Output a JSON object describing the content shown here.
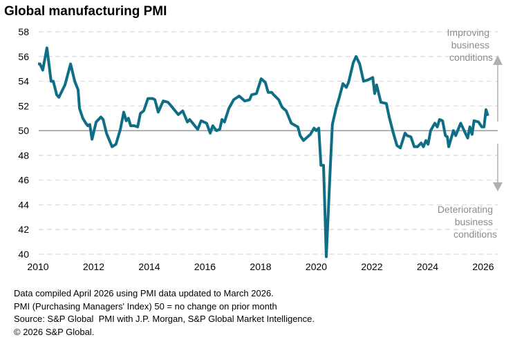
{
  "chart_data": {
    "type": "line",
    "title": "Global manufacturing PMI",
    "xlabel": "",
    "ylabel": "",
    "xlim": [
      2010,
      2026
    ],
    "ylim": [
      40,
      58
    ],
    "x_ticks": [
      "2010",
      "2012",
      "2014",
      "2016",
      "2018",
      "2020",
      "2022",
      "2024",
      "2026"
    ],
    "y_ticks": [
      "40",
      "42",
      "44",
      "46",
      "48",
      "50",
      "52",
      "54",
      "56",
      "58"
    ],
    "grid": "horizontal dashed",
    "reference_line": 50,
    "line_color": "#0e6e86",
    "series": [
      {
        "name": "Global manufacturing PMI",
        "x": [
          2010.0,
          2010.07,
          2010.17,
          2010.32,
          2010.47,
          2010.55,
          2010.67,
          2010.75,
          2010.97,
          2011.17,
          2011.32,
          2011.44,
          2011.49,
          2011.61,
          2011.72,
          2011.79,
          2011.86,
          2011.94,
          2012.09,
          2012.26,
          2012.34,
          2012.46,
          2012.66,
          2012.8,
          2012.96,
          2013.08,
          2013.17,
          2013.25,
          2013.33,
          2013.46,
          2013.58,
          2013.68,
          2013.8,
          2013.95,
          2014.12,
          2014.2,
          2014.32,
          2014.5,
          2014.67,
          2014.82,
          2015.04,
          2015.2,
          2015.37,
          2015.45,
          2015.74,
          2015.86,
          2016.06,
          2016.19,
          2016.28,
          2016.41,
          2016.53,
          2016.61,
          2016.7,
          2016.86,
          2017.03,
          2017.23,
          2017.43,
          2017.6,
          2017.68,
          2017.85,
          2018.02,
          2018.17,
          2018.27,
          2018.4,
          2018.47,
          2018.65,
          2018.77,
          2018.92,
          2019.1,
          2019.34,
          2019.42,
          2019.54,
          2019.79,
          2019.92,
          2020.0,
          2020.09,
          2020.17,
          2020.26,
          2020.36,
          2020.5,
          2020.58,
          2020.71,
          2020.83,
          2020.96,
          2021.08,
          2021.16,
          2021.33,
          2021.43,
          2021.56,
          2021.7,
          2021.85,
          2022.03,
          2022.1,
          2022.17,
          2022.32,
          2022.52,
          2022.62,
          2022.77,
          2022.9,
          2023.02,
          2023.19,
          2023.27,
          2023.4,
          2023.52,
          2023.64,
          2023.77,
          2023.85,
          2023.94,
          2024.02,
          2024.11,
          2024.26,
          2024.35,
          2024.43,
          2024.54,
          2024.64,
          2024.71,
          2024.76,
          2024.93,
          2025.01,
          2025.19,
          2025.44,
          2025.52,
          2025.6,
          2025.67,
          2025.83,
          2025.95,
          2026.03,
          2026.1,
          2026.17
        ],
        "values": [
          55.4,
          55.4,
          54.9,
          56.7,
          54.0,
          54.0,
          52.9,
          52.7,
          53.7,
          55.4,
          54.0,
          53.3,
          51.8,
          51.0,
          50.6,
          50.4,
          50.5,
          49.3,
          50.7,
          51.1,
          50.9,
          49.8,
          48.7,
          48.9,
          50.1,
          51.5,
          50.8,
          51.0,
          50.4,
          50.4,
          50.3,
          51.4,
          51.6,
          52.6,
          52.6,
          52.5,
          51.5,
          52.4,
          52.3,
          51.9,
          51.3,
          51.6,
          50.7,
          50.9,
          50.1,
          50.8,
          50.6,
          49.8,
          50.4,
          50.0,
          50.1,
          50.9,
          50.7,
          51.8,
          52.5,
          52.8,
          52.4,
          52.5,
          52.9,
          53.0,
          54.2,
          53.9,
          53.1,
          53.1,
          52.9,
          52.5,
          51.9,
          51.6,
          50.6,
          50.3,
          49.6,
          49.2,
          49.7,
          50.2,
          50.0,
          50.2,
          47.2,
          47.2,
          39.8,
          46.8,
          50.5,
          51.8,
          52.7,
          53.8,
          53.5,
          53.9,
          55.5,
          56.0,
          55.4,
          54.0,
          54.1,
          54.3,
          53.0,
          53.7,
          52.3,
          52.2,
          51.1,
          49.8,
          48.8,
          48.6,
          49.8,
          49.6,
          49.5,
          48.7,
          48.7,
          49.0,
          48.7,
          49.2,
          48.9,
          50.0,
          50.6,
          50.3,
          50.9,
          50.8,
          49.6,
          49.5,
          48.7,
          50.0,
          49.6,
          50.6,
          49.4,
          50.3,
          49.7,
          50.8,
          50.7,
          50.3,
          50.3,
          51.7,
          51.2
        ]
      }
    ],
    "annotations": {
      "up": [
        "Improving",
        "business",
        "conditions"
      ],
      "down": [
        "Deteriorating",
        "business",
        "conditions"
      ]
    }
  },
  "notes": [
    "Data compiled April 2026 using PMI data updated to March 2026.",
    "PMI (Purchasing Managers' Index) 50 = no change on prior month",
    "Source: S&P Global  PMI with J.P. Morgan, S&P Global Market Intelligence.",
    "© 2026 S&P Global."
  ]
}
